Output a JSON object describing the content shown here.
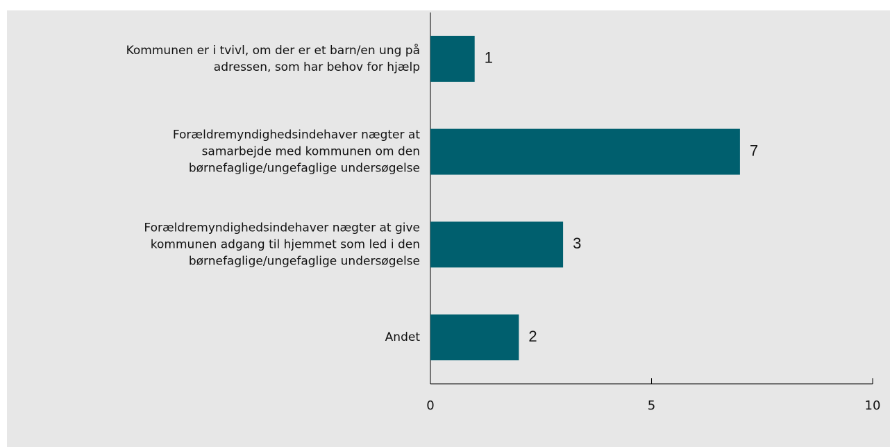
{
  "chart_data": {
    "type": "barh",
    "categories": [
      [
        "Kommunen er i tvivl, om der er et barn/en ung på",
        "adressen, som har behov for hjælp"
      ],
      [
        "Forældremyndighedsindehaver nægter at",
        "samarbejde med kommunen om den",
        "børnefaglige/ungefaglige undersøgelse"
      ],
      [
        "Forældremyndighedsindehaver nægter at give",
        "kommunen adgang til hjemmet som led i den",
        "børnefaglige/ungefaglige undersøgelse"
      ],
      [
        "Andet"
      ]
    ],
    "values": [
      1,
      7,
      3,
      2
    ],
    "color": "#005f6e",
    "xlim": [
      0,
      10
    ],
    "xticks": [
      0,
      5,
      10
    ],
    "grid": false
  }
}
